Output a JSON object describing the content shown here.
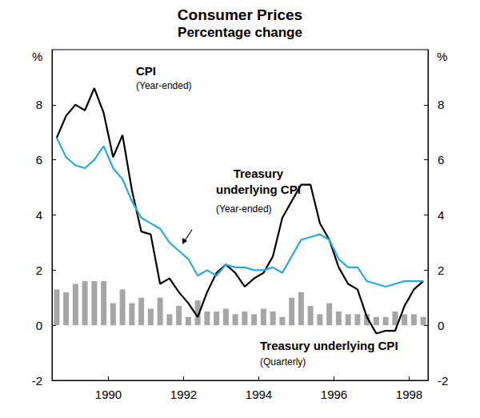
{
  "chart_data": {
    "type": "line",
    "title": "Consumer Prices",
    "subtitle": "Percentage change",
    "ylabel": "%",
    "y2label": "%",
    "x": [
      1988.625,
      1988.875,
      1989.125,
      1989.375,
      1989.625,
      1989.875,
      1990.125,
      1990.375,
      1990.625,
      1990.875,
      1991.125,
      1991.375,
      1991.625,
      1991.875,
      1992.125,
      1992.375,
      1992.625,
      1992.875,
      1993.125,
      1993.375,
      1993.625,
      1993.875,
      1994.125,
      1994.375,
      1994.625,
      1994.875,
      1995.125,
      1995.375,
      1995.625,
      1995.875,
      1996.125,
      1996.375,
      1996.625,
      1996.875,
      1997.125,
      1997.375,
      1997.625,
      1997.875,
      1998.125,
      1998.375
    ],
    "xlim": [
      1988.5,
      1998.5
    ],
    "xticks": [
      1990,
      1992,
      1994,
      1996,
      1998
    ],
    "ylim": [
      -2,
      10
    ],
    "yticks": [
      -2,
      0,
      2,
      4,
      6,
      8
    ],
    "y2lim": [
      -2,
      10
    ],
    "y2ticks": [
      -2,
      0,
      2,
      4,
      6,
      8
    ],
    "grid": false,
    "series": [
      {
        "type": "bar",
        "color": "#a6a6a6",
        "values": [
          1.3,
          1.2,
          1.5,
          1.6,
          1.6,
          1.6,
          0.8,
          1.3,
          0.8,
          1.0,
          0.6,
          1.0,
          0.4,
          0.7,
          0.3,
          0.9,
          0.5,
          0.5,
          0.6,
          0.4,
          0.5,
          0.4,
          0.6,
          0.5,
          0.3,
          1.0,
          1.2,
          0.7,
          0.4,
          0.8,
          0.5,
          0.4,
          0.4,
          0.4,
          0.3,
          0.3,
          0.5,
          0.4,
          0.4,
          0.3
        ]
      },
      {
        "type": "line",
        "color": "#000000",
        "values": [
          6.8,
          7.6,
          8.0,
          7.8,
          8.6,
          7.7,
          6.1,
          6.9,
          4.9,
          3.4,
          3.3,
          1.5,
          1.7,
          1.2,
          0.8,
          0.3,
          1.2,
          1.9,
          2.2,
          1.9,
          1.4,
          1.7,
          1.9,
          2.5,
          3.9,
          4.5,
          5.1,
          5.1,
          3.7,
          3.1,
          2.1,
          1.5,
          1.3,
          0.3,
          -0.3,
          -0.2,
          -0.2,
          0.7,
          1.3,
          1.6
        ]
      },
      {
        "type": "line",
        "color": "#29a9e1",
        "values": [
          6.8,
          6.1,
          5.8,
          5.7,
          6.0,
          6.5,
          5.7,
          5.3,
          4.5,
          3.9,
          3.7,
          3.5,
          3.0,
          2.7,
          2.4,
          1.8,
          2.0,
          1.8,
          2.2,
          2.1,
          2.1,
          2.0,
          2.0,
          2.1,
          1.9,
          2.5,
          3.1,
          3.2,
          3.3,
          3.1,
          2.4,
          2.1,
          2.1,
          1.6,
          1.5,
          1.4,
          1.5,
          1.6,
          1.6,
          1.6
        ]
      }
    ],
    "annotations": [
      {
        "text": "CPI",
        "subtext": "(Year-ended)"
      },
      {
        "text": "Treasury\nunderlying CPI",
        "subtext": "(Year-ended)"
      },
      {
        "text": "Treasury underlying CPI",
        "subtext": "(Quarterly)"
      }
    ]
  }
}
